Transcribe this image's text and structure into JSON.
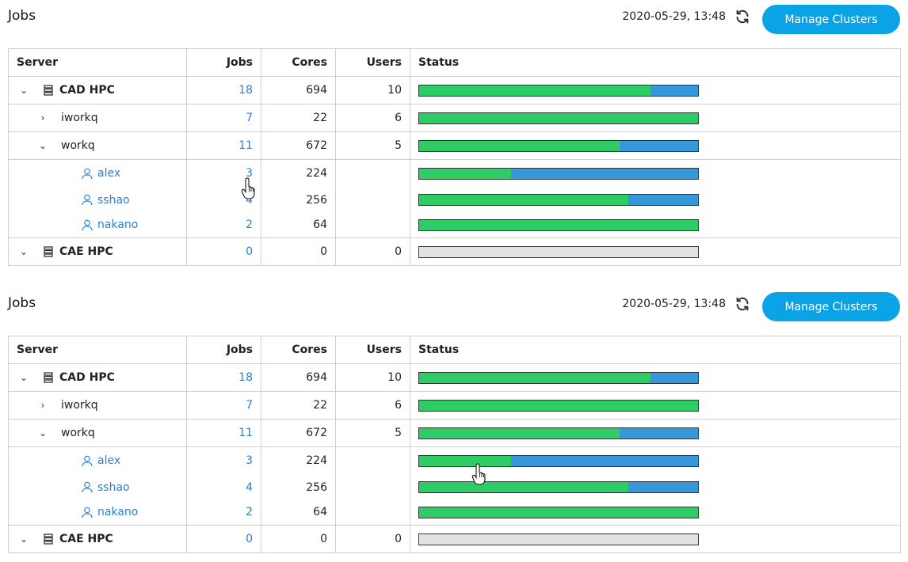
{
  "panels": [
    {
      "title": "Jobs",
      "timestamp": "2020-05-29, 13:48",
      "manage_label": "Manage Clusters",
      "columns": {
        "server": "Server",
        "jobs": "Jobs",
        "cores": "Cores",
        "users": "Users",
        "status": "Status"
      },
      "rows": {
        "cad": {
          "name": "CAD HPC",
          "jobs": "18",
          "cores": "694",
          "users": "10",
          "running_fraction": 0.83
        },
        "iworkq": {
          "name": "iworkq",
          "jobs": "7",
          "cores": "22",
          "users": "6",
          "running_fraction": 1.0
        },
        "workq": {
          "name": "workq",
          "jobs": "11",
          "cores": "672",
          "users": "5",
          "running_fraction": 0.72
        },
        "alex": {
          "name": "alex",
          "jobs": "3",
          "cores": "224",
          "running_fraction": 0.33
        },
        "sshao": {
          "name": "sshao",
          "jobs": "4",
          "cores": "256",
          "running_fraction": 0.75
        },
        "nakano": {
          "name": "nakano",
          "jobs": "2",
          "cores": "64",
          "running_fraction": 1.0
        },
        "cae": {
          "name": "CAE HPC",
          "jobs": "0",
          "cores": "0",
          "users": "0",
          "running_fraction": 0
        }
      }
    },
    {
      "title": "Jobs",
      "timestamp": "2020-05-29, 13:48",
      "manage_label": "Manage Clusters",
      "columns": {
        "server": "Server",
        "jobs": "Jobs",
        "cores": "Cores",
        "users": "Users",
        "status": "Status"
      },
      "rows": {
        "cad": {
          "name": "CAD HPC",
          "jobs": "18",
          "cores": "694",
          "users": "10",
          "running_fraction": 0.83
        },
        "iworkq": {
          "name": "iworkq",
          "jobs": "7",
          "cores": "22",
          "users": "6",
          "running_fraction": 1.0
        },
        "workq": {
          "name": "workq",
          "jobs": "11",
          "cores": "672",
          "users": "5",
          "running_fraction": 0.72
        },
        "alex": {
          "name": "alex",
          "jobs": "3",
          "cores": "224",
          "running_fraction": 0.33
        },
        "sshao": {
          "name": "sshao",
          "jobs": "4",
          "cores": "256",
          "running_fraction": 0.75
        },
        "nakano": {
          "name": "nakano",
          "jobs": "2",
          "cores": "64",
          "running_fraction": 1.0
        },
        "cae": {
          "name": "CAE HPC",
          "jobs": "0",
          "cores": "0",
          "users": "0",
          "running_fraction": 0
        }
      }
    }
  ],
  "colors": {
    "accent": "#0aa3e6",
    "link": "#2a7fd4",
    "running": "#2ecc65",
    "queued": "#3498db",
    "empty": "#e2e2e2"
  }
}
